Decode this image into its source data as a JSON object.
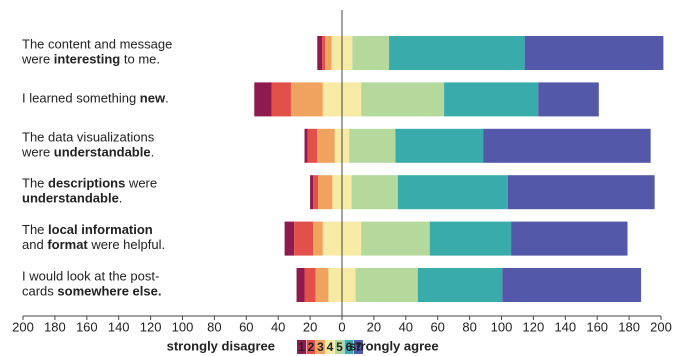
{
  "chart_data": {
    "type": "diverging_bar",
    "categories": [
      [
        [
          {
            "text": "The content and message",
            "bold": false
          }
        ],
        [
          {
            "text": "were ",
            "bold": false
          },
          {
            "text": "interesting",
            "bold": true
          },
          {
            "text": " to me.",
            "bold": false
          }
        ]
      ],
      [
        [
          {
            "text": "I learned something ",
            "bold": false
          },
          {
            "text": "new",
            "bold": true
          },
          {
            "text": ".",
            "bold": false
          }
        ]
      ],
      [
        [
          {
            "text": "The data visualizations",
            "bold": false
          }
        ],
        [
          {
            "text": "were ",
            "bold": false
          },
          {
            "text": "understandable",
            "bold": true
          },
          {
            "text": ".",
            "bold": false
          }
        ]
      ],
      [
        [
          {
            "text": "The ",
            "bold": false
          },
          {
            "text": "descriptions",
            "bold": true
          },
          {
            "text": " were",
            "bold": false
          }
        ],
        [
          {
            "text": "understandable",
            "bold": true
          },
          {
            "text": ".",
            "bold": false
          }
        ]
      ],
      [
        [
          {
            "text": "The ",
            "bold": false
          },
          {
            "text": "local information",
            "bold": true
          }
        ],
        [
          {
            "text": "and ",
            "bold": false
          },
          {
            "text": "format",
            "bold": true
          },
          {
            "text": " were helpful.",
            "bold": false
          }
        ]
      ],
      [
        [
          {
            "text": "I would look at the post-",
            "bold": false
          }
        ],
        [
          {
            "text": "cards ",
            "bold": false
          },
          {
            "text": "somewhere else.",
            "bold": true
          }
        ]
      ]
    ],
    "series": [
      {
        "name": "1",
        "color": "#8e1b4f",
        "values": [
          3,
          11,
          2,
          2,
          6,
          5
        ]
      },
      {
        "name": "2",
        "color": "#e2504a",
        "values": [
          2,
          12,
          6,
          3,
          12,
          7
        ]
      },
      {
        "name": "3",
        "color": "#f0a35e",
        "values": [
          4,
          20,
          11,
          9,
          6,
          8
        ]
      },
      {
        "name": "4",
        "color": "#f7eaa4",
        "values": [
          13,
          24,
          9,
          12,
          24,
          17
        ]
      },
      {
        "name": "5",
        "color": "#b5d99c",
        "values": [
          23,
          52,
          29,
          29,
          43,
          39
        ]
      },
      {
        "name": "6",
        "color": "#3aabab",
        "values": [
          85,
          59,
          55,
          69,
          51,
          53
        ]
      },
      {
        "name": "7",
        "color": "#5458a8",
        "values": [
          87,
          38,
          105,
          92,
          73,
          87
        ]
      }
    ],
    "neutral_series": 3,
    "xlim": [
      -200,
      200
    ],
    "xticks": [
      {
        "value": -200,
        "label": "200"
      },
      {
        "value": -180,
        "label": "180"
      },
      {
        "value": -160,
        "label": "160"
      },
      {
        "value": -140,
        "label": "140"
      },
      {
        "value": -120,
        "label": "120"
      },
      {
        "value": -100,
        "label": "100"
      },
      {
        "value": -80,
        "label": "80"
      },
      {
        "value": -60,
        "label": "60"
      },
      {
        "value": -40,
        "label": "40"
      },
      {
        "value": -20,
        "label": "20"
      },
      0,
      20,
      40,
      60,
      80,
      100,
      120,
      140,
      160,
      180,
      200
    ],
    "legend_left": {
      "text": "strongly disagree",
      "color": "#a01c4f"
    },
    "legend_right": {
      "text": "strongly agree",
      "color": "#5c5aa8"
    }
  }
}
